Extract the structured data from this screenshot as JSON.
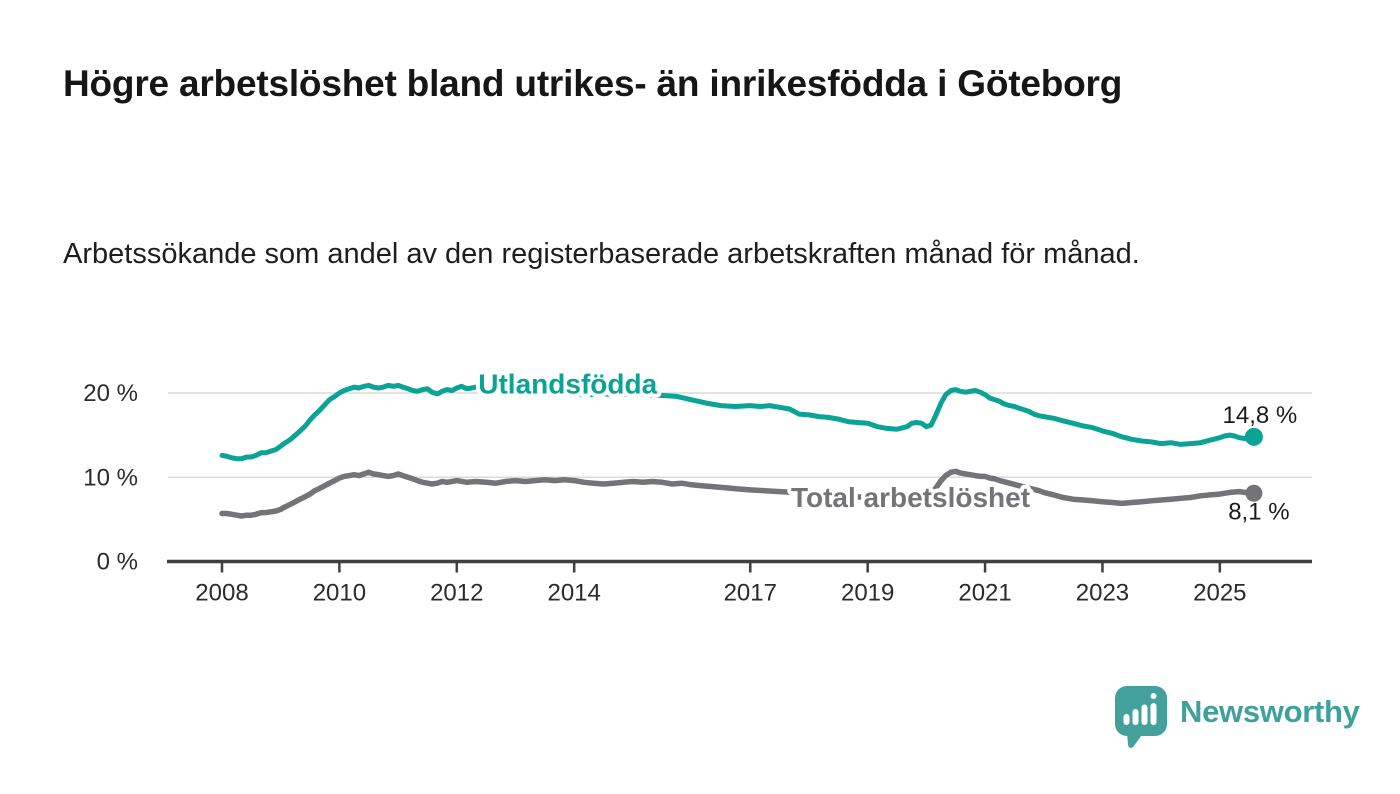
{
  "branding": {
    "logo_text": "Newsworthy",
    "logo_icon": "bar-chart-speech-bubble-icon",
    "brand_color": "#43a09b"
  },
  "chart_data": {
    "type": "line",
    "title": "Högre arbetslöshet bland utrikes- än inrikesfödda i Göteborg",
    "subtitle": "Arbetssökande som andel av den registerbaserade arbetskraften månad för månad.",
    "grid": "horizontal",
    "legend_position": "inline-labels",
    "x_range": [
      2007.08,
      2026.57
    ],
    "y_range": [
      0,
      23.8
    ],
    "x_ticks": [
      {
        "year": 2008,
        "label": "2008"
      },
      {
        "year": 2010,
        "label": "2010"
      },
      {
        "year": 2012,
        "label": "2012"
      },
      {
        "year": 2014,
        "label": "2014"
      },
      {
        "year": 2017,
        "label": "2017"
      },
      {
        "year": 2019,
        "label": "2019"
      },
      {
        "year": 2021,
        "label": "2021"
      },
      {
        "year": 2023,
        "label": "2023"
      },
      {
        "year": 2025,
        "label": "2025"
      }
    ],
    "y_ticks": [
      {
        "value": 0,
        "label": "0 %"
      },
      {
        "value": 10,
        "label": "10 %"
      },
      {
        "value": 20,
        "label": "20 %"
      }
    ],
    "series": [
      {
        "name": "Utlandsfödda",
        "color": "#0aa396",
        "line_width": 5,
        "dot_radius": 9,
        "end_label": "14,8 %",
        "end_value": 14.8,
        "label_pos": {
          "year": 2013.89,
          "value": 21.1
        },
        "end_label_offset": {
          "dx": 6,
          "dy": -14
        },
        "points": [
          [
            2008.0,
            12.6
          ],
          [
            2008.08,
            12.5
          ],
          [
            2008.17,
            12.3
          ],
          [
            2008.25,
            12.2
          ],
          [
            2008.33,
            12.2
          ],
          [
            2008.42,
            12.4
          ],
          [
            2008.5,
            12.4
          ],
          [
            2008.58,
            12.6
          ],
          [
            2008.67,
            12.9
          ],
          [
            2008.75,
            12.9
          ],
          [
            2008.83,
            13.1
          ],
          [
            2008.92,
            13.3
          ],
          [
            2009.0,
            13.7
          ],
          [
            2009.08,
            14.1
          ],
          [
            2009.17,
            14.5
          ],
          [
            2009.25,
            15.0
          ],
          [
            2009.33,
            15.5
          ],
          [
            2009.42,
            16.1
          ],
          [
            2009.5,
            16.8
          ],
          [
            2009.58,
            17.4
          ],
          [
            2009.67,
            18.0
          ],
          [
            2009.75,
            18.6
          ],
          [
            2009.83,
            19.2
          ],
          [
            2009.92,
            19.6
          ],
          [
            2010.0,
            20.0
          ],
          [
            2010.08,
            20.3
          ],
          [
            2010.17,
            20.5
          ],
          [
            2010.25,
            20.7
          ],
          [
            2010.33,
            20.6
          ],
          [
            2010.42,
            20.8
          ],
          [
            2010.5,
            20.9
          ],
          [
            2010.58,
            20.7
          ],
          [
            2010.67,
            20.6
          ],
          [
            2010.75,
            20.7
          ],
          [
            2010.83,
            20.9
          ],
          [
            2010.92,
            20.8
          ],
          [
            2011.0,
            20.9
          ],
          [
            2011.08,
            20.7
          ],
          [
            2011.17,
            20.5
          ],
          [
            2011.25,
            20.3
          ],
          [
            2011.33,
            20.2
          ],
          [
            2011.42,
            20.4
          ],
          [
            2011.5,
            20.5
          ],
          [
            2011.58,
            20.1
          ],
          [
            2011.67,
            19.9
          ],
          [
            2011.75,
            20.2
          ],
          [
            2011.83,
            20.4
          ],
          [
            2011.92,
            20.3
          ],
          [
            2012.0,
            20.6
          ],
          [
            2012.08,
            20.8
          ],
          [
            2012.17,
            20.5
          ],
          [
            2012.25,
            20.6
          ],
          [
            2012.33,
            20.7
          ],
          [
            2012.42,
            20.9
          ],
          [
            2012.5,
            20.6
          ],
          [
            2012.58,
            20.3
          ],
          [
            2012.67,
            20.3
          ],
          [
            2012.75,
            20.5
          ],
          [
            2012.83,
            20.4
          ],
          [
            2013.0,
            20.3
          ],
          [
            2013.25,
            20.1
          ],
          [
            2013.5,
            20.0
          ],
          [
            2013.75,
            20.1
          ],
          [
            2014.0,
            19.9
          ],
          [
            2014.25,
            19.8
          ],
          [
            2014.5,
            19.9
          ],
          [
            2014.75,
            19.8
          ],
          [
            2015.0,
            19.9
          ],
          [
            2015.25,
            19.8
          ],
          [
            2015.5,
            19.7
          ],
          [
            2015.75,
            19.6
          ],
          [
            2016.0,
            19.2
          ],
          [
            2016.25,
            18.8
          ],
          [
            2016.5,
            18.5
          ],
          [
            2016.75,
            18.4
          ],
          [
            2017.0,
            18.5
          ],
          [
            2017.17,
            18.4
          ],
          [
            2017.33,
            18.5
          ],
          [
            2017.5,
            18.3
          ],
          [
            2017.67,
            18.1
          ],
          [
            2017.83,
            17.5
          ],
          [
            2018.0,
            17.4
          ],
          [
            2018.17,
            17.2
          ],
          [
            2018.33,
            17.1
          ],
          [
            2018.5,
            16.9
          ],
          [
            2018.67,
            16.6
          ],
          [
            2018.83,
            16.5
          ],
          [
            2019.0,
            16.4
          ],
          [
            2019.17,
            16.0
          ],
          [
            2019.33,
            15.8
          ],
          [
            2019.5,
            15.7
          ],
          [
            2019.67,
            16.0
          ],
          [
            2019.75,
            16.4
          ],
          [
            2019.83,
            16.5
          ],
          [
            2019.92,
            16.4
          ],
          [
            2020.0,
            16.0
          ],
          [
            2020.08,
            16.2
          ],
          [
            2020.17,
            17.5
          ],
          [
            2020.25,
            18.8
          ],
          [
            2020.33,
            19.8
          ],
          [
            2020.42,
            20.3
          ],
          [
            2020.5,
            20.4
          ],
          [
            2020.58,
            20.2
          ],
          [
            2020.67,
            20.1
          ],
          [
            2020.75,
            20.2
          ],
          [
            2020.83,
            20.3
          ],
          [
            2020.92,
            20.1
          ],
          [
            2021.0,
            19.8
          ],
          [
            2021.08,
            19.4
          ],
          [
            2021.17,
            19.2
          ],
          [
            2021.25,
            19.0
          ],
          [
            2021.33,
            18.7
          ],
          [
            2021.42,
            18.5
          ],
          [
            2021.5,
            18.4
          ],
          [
            2021.58,
            18.2
          ],
          [
            2021.67,
            18.0
          ],
          [
            2021.75,
            17.8
          ],
          [
            2021.83,
            17.5
          ],
          [
            2021.92,
            17.3
          ],
          [
            2022.0,
            17.2
          ],
          [
            2022.17,
            17.0
          ],
          [
            2022.33,
            16.7
          ],
          [
            2022.5,
            16.4
          ],
          [
            2022.67,
            16.1
          ],
          [
            2022.83,
            15.9
          ],
          [
            2023.0,
            15.5
          ],
          [
            2023.17,
            15.2
          ],
          [
            2023.33,
            14.8
          ],
          [
            2023.5,
            14.5
          ],
          [
            2023.67,
            14.3
          ],
          [
            2023.83,
            14.2
          ],
          [
            2024.0,
            14.0
          ],
          [
            2024.17,
            14.1
          ],
          [
            2024.33,
            13.9
          ],
          [
            2024.5,
            14.0
          ],
          [
            2024.67,
            14.1
          ],
          [
            2024.83,
            14.4
          ],
          [
            2025.0,
            14.7
          ],
          [
            2025.08,
            14.9
          ],
          [
            2025.17,
            15.0
          ],
          [
            2025.25,
            14.9
          ],
          [
            2025.33,
            14.7
          ],
          [
            2025.42,
            14.6
          ],
          [
            2025.5,
            14.7
          ],
          [
            2025.58,
            14.8
          ]
        ]
      },
      {
        "name": "Total arbetslöshet",
        "color": "#75737a",
        "line_width": 5.5,
        "dot_radius": 8.5,
        "end_label": "8,1 %",
        "end_value": 8.1,
        "label_pos": {
          "year": 2019.73,
          "value": 7.66
        },
        "end_label_offset": {
          "dx": 5,
          "dy": 26
        },
        "points": [
          [
            2008.0,
            5.7
          ],
          [
            2008.08,
            5.7
          ],
          [
            2008.17,
            5.6
          ],
          [
            2008.25,
            5.5
          ],
          [
            2008.33,
            5.4
          ],
          [
            2008.42,
            5.5
          ],
          [
            2008.5,
            5.5
          ],
          [
            2008.58,
            5.6
          ],
          [
            2008.67,
            5.8
          ],
          [
            2008.75,
            5.8
          ],
          [
            2008.83,
            5.9
          ],
          [
            2008.92,
            6.0
          ],
          [
            2009.0,
            6.2
          ],
          [
            2009.08,
            6.5
          ],
          [
            2009.17,
            6.8
          ],
          [
            2009.25,
            7.1
          ],
          [
            2009.33,
            7.4
          ],
          [
            2009.42,
            7.7
          ],
          [
            2009.5,
            8.0
          ],
          [
            2009.58,
            8.4
          ],
          [
            2009.67,
            8.7
          ],
          [
            2009.75,
            9.0
          ],
          [
            2009.83,
            9.3
          ],
          [
            2009.92,
            9.6
          ],
          [
            2010.0,
            9.9
          ],
          [
            2010.08,
            10.1
          ],
          [
            2010.17,
            10.2
          ],
          [
            2010.25,
            10.3
          ],
          [
            2010.33,
            10.2
          ],
          [
            2010.42,
            10.4
          ],
          [
            2010.5,
            10.6
          ],
          [
            2010.58,
            10.4
          ],
          [
            2010.67,
            10.3
          ],
          [
            2010.75,
            10.2
          ],
          [
            2010.83,
            10.1
          ],
          [
            2010.92,
            10.2
          ],
          [
            2011.0,
            10.4
          ],
          [
            2011.08,
            10.2
          ],
          [
            2011.17,
            10.0
          ],
          [
            2011.25,
            9.8
          ],
          [
            2011.33,
            9.6
          ],
          [
            2011.42,
            9.4
          ],
          [
            2011.5,
            9.3
          ],
          [
            2011.58,
            9.2
          ],
          [
            2011.67,
            9.3
          ],
          [
            2011.75,
            9.5
          ],
          [
            2011.83,
            9.4
          ],
          [
            2011.92,
            9.5
          ],
          [
            2012.0,
            9.6
          ],
          [
            2012.17,
            9.4
          ],
          [
            2012.33,
            9.5
          ],
          [
            2012.5,
            9.4
          ],
          [
            2012.67,
            9.3
          ],
          [
            2012.83,
            9.5
          ],
          [
            2013.0,
            9.6
          ],
          [
            2013.17,
            9.5
          ],
          [
            2013.33,
            9.6
          ],
          [
            2013.5,
            9.7
          ],
          [
            2013.67,
            9.6
          ],
          [
            2013.83,
            9.7
          ],
          [
            2014.0,
            9.6
          ],
          [
            2014.17,
            9.4
          ],
          [
            2014.33,
            9.3
          ],
          [
            2014.5,
            9.2
          ],
          [
            2014.67,
            9.3
          ],
          [
            2014.83,
            9.4
          ],
          [
            2015.0,
            9.5
          ],
          [
            2015.17,
            9.4
          ],
          [
            2015.33,
            9.5
          ],
          [
            2015.5,
            9.4
          ],
          [
            2015.67,
            9.2
          ],
          [
            2015.83,
            9.3
          ],
          [
            2016.0,
            9.1
          ],
          [
            2016.17,
            9.0
          ],
          [
            2016.33,
            8.9
          ],
          [
            2016.5,
            8.8
          ],
          [
            2016.67,
            8.7
          ],
          [
            2016.83,
            8.6
          ],
          [
            2017.0,
            8.5
          ],
          [
            2017.25,
            8.4
          ],
          [
            2017.5,
            8.3
          ],
          [
            2017.75,
            8.2
          ],
          [
            2018.0,
            8.1
          ],
          [
            2018.25,
            8.0
          ],
          [
            2018.5,
            7.9
          ],
          [
            2018.75,
            7.7
          ],
          [
            2019.0,
            7.6
          ],
          [
            2019.25,
            7.5
          ],
          [
            2019.5,
            7.4
          ],
          [
            2019.75,
            7.5
          ],
          [
            2020.0,
            7.8
          ],
          [
            2020.08,
            8.0
          ],
          [
            2020.17,
            8.8
          ],
          [
            2020.25,
            9.6
          ],
          [
            2020.33,
            10.2
          ],
          [
            2020.42,
            10.6
          ],
          [
            2020.5,
            10.7
          ],
          [
            2020.58,
            10.5
          ],
          [
            2020.67,
            10.4
          ],
          [
            2020.75,
            10.3
          ],
          [
            2020.83,
            10.2
          ],
          [
            2020.92,
            10.1
          ],
          [
            2021.0,
            10.1
          ],
          [
            2021.08,
            9.9
          ],
          [
            2021.17,
            9.8
          ],
          [
            2021.25,
            9.6
          ],
          [
            2021.42,
            9.3
          ],
          [
            2021.58,
            9.0
          ],
          [
            2021.75,
            8.7
          ],
          [
            2021.92,
            8.4
          ],
          [
            2022.0,
            8.2
          ],
          [
            2022.17,
            7.9
          ],
          [
            2022.33,
            7.6
          ],
          [
            2022.5,
            7.4
          ],
          [
            2022.67,
            7.3
          ],
          [
            2022.83,
            7.2
          ],
          [
            2023.0,
            7.1
          ],
          [
            2023.17,
            7.0
          ],
          [
            2023.33,
            6.9
          ],
          [
            2023.5,
            7.0
          ],
          [
            2023.67,
            7.1
          ],
          [
            2023.83,
            7.2
          ],
          [
            2024.0,
            7.3
          ],
          [
            2024.17,
            7.4
          ],
          [
            2024.33,
            7.5
          ],
          [
            2024.5,
            7.6
          ],
          [
            2024.67,
            7.8
          ],
          [
            2024.83,
            7.9
          ],
          [
            2025.0,
            8.0
          ],
          [
            2025.17,
            8.2
          ],
          [
            2025.33,
            8.3
          ],
          [
            2025.42,
            8.2
          ],
          [
            2025.5,
            8.2
          ],
          [
            2025.58,
            8.1
          ]
        ]
      }
    ]
  }
}
